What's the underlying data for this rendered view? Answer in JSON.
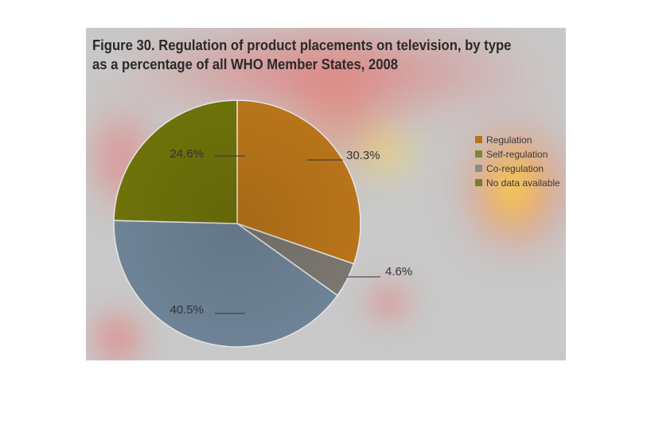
{
  "title": {
    "figure_number": "Figure 30.",
    "line1": "Regulation of product placements on television, by type",
    "line2": "as a percentage of all WHO Member States, 2008"
  },
  "chart_data": {
    "type": "pie",
    "title": "Figure 30. Regulation of product placements on television, by type as a percentage of all WHO Member States, 2008",
    "legend_position": "right",
    "start_angle_deg": 0,
    "direction": "clockwise",
    "legend": [
      {
        "label": "Regulation",
        "color": "#b8741a"
      },
      {
        "label": "Self-regulation",
        "color": "#7a8a3a"
      },
      {
        "label": "Co-regulation",
        "color": "#8a8a8a"
      },
      {
        "label": "No data available",
        "color": "#7a7a3a"
      }
    ],
    "slices": [
      {
        "category": "Regulation",
        "value": 30.3,
        "label": "30.3%",
        "color": "#b8741a"
      },
      {
        "category": "Co-regulation",
        "value": 4.6,
        "label": "4.6%",
        "color": "#7b7670"
      },
      {
        "category": "No data available",
        "value": 40.5,
        "label": "40.5%",
        "color": "#6e8396"
      },
      {
        "category": "Self-regulation",
        "value": 24.6,
        "label": "24.6%",
        "color": "#6e720a"
      }
    ]
  }
}
